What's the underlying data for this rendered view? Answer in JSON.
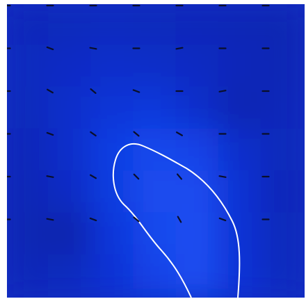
{
  "chart_data": {
    "type": "heatmap",
    "title": "",
    "xlabel": "",
    "ylabel": "",
    "grid": false,
    "legend": "none",
    "colorscale": [
      "#08209e",
      "#0a2fd0",
      "#1240e6",
      "#1f53f4"
    ],
    "colors": {
      "background": "#ffffff",
      "base_field": "#0b2dc3",
      "contour_line": "#ffffff",
      "vector_marker": "#0a0f2a"
    },
    "field_rows": 7,
    "field_cols": 7,
    "values": [
      [
        0.18,
        0.2,
        0.22,
        0.2,
        0.18,
        0.16,
        0.14
      ],
      [
        0.22,
        0.26,
        0.3,
        0.28,
        0.24,
        0.18,
        0.15
      ],
      [
        0.2,
        0.3,
        0.44,
        0.5,
        0.3,
        0.14,
        0.18
      ],
      [
        0.18,
        0.3,
        0.62,
        0.82,
        0.7,
        0.3,
        0.2
      ],
      [
        0.16,
        0.26,
        0.58,
        0.86,
        0.88,
        0.38,
        0.18
      ],
      [
        0.14,
        0.1,
        0.48,
        0.8,
        0.92,
        0.4,
        0.2
      ],
      [
        0.18,
        0.22,
        0.4,
        0.7,
        0.9,
        0.42,
        0.22
      ]
    ],
    "vector_field": {
      "rows": 6,
      "cols": 7,
      "angles_deg": [
        [
          0,
          0,
          0,
          0,
          0,
          0,
          0
        ],
        [
          0,
          20,
          10,
          0,
          -10,
          0,
          0
        ],
        [
          0,
          30,
          40,
          20,
          0,
          -10,
          0
        ],
        [
          0,
          20,
          35,
          40,
          30,
          0,
          0
        ],
        [
          0,
          10,
          30,
          45,
          50,
          10,
          0
        ],
        [
          0,
          10,
          20,
          40,
          60,
          20,
          0
        ]
      ]
    },
    "contour_level": 0.72
  }
}
